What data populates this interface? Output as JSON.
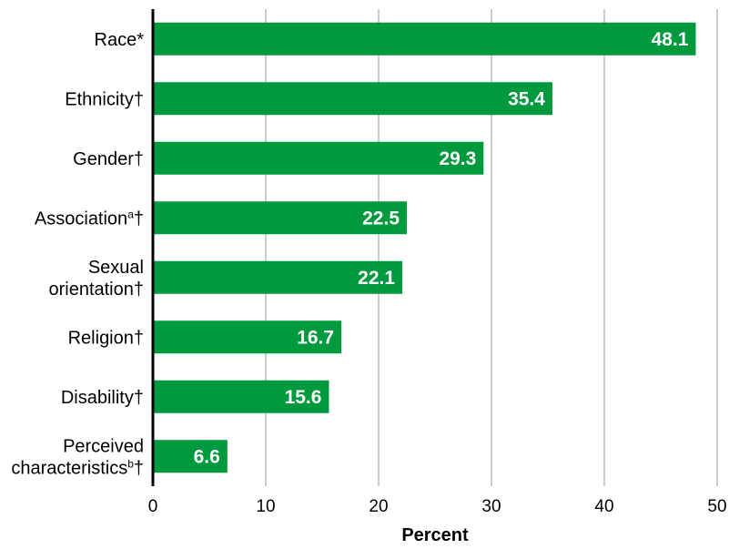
{
  "chart_data": {
    "type": "bar",
    "orientation": "horizontal",
    "categories": [
      [
        "Race*"
      ],
      [
        "Ethnicity†"
      ],
      [
        "Gender†"
      ],
      [
        "Association",
        "a",
        "†"
      ],
      [
        "Sexual",
        "orientation†"
      ],
      [
        "Religion†"
      ],
      [
        "Disability†"
      ],
      [
        "Perceived",
        "characteristics",
        "b",
        "†"
      ]
    ],
    "category_labels": [
      "Race*",
      "Ethnicity†",
      "Gender†",
      "Associationᵃ†",
      "Sexual orientation†",
      "Religion†",
      "Disability†",
      "Perceived characteristicsᵇ†"
    ],
    "values": [
      48.1,
      35.4,
      29.3,
      22.5,
      22.1,
      16.7,
      15.6,
      6.6
    ],
    "value_labels": [
      "48.1",
      "35.4",
      "29.3",
      "22.5",
      "22.1",
      "16.7",
      "15.6",
      "6.6"
    ],
    "xlabel": "Percent",
    "ylabel": "",
    "xlim": [
      0,
      50
    ],
    "xticks": [
      0,
      10,
      20,
      30,
      40,
      50
    ],
    "xtick_labels": [
      "0",
      "10",
      "20",
      "30",
      "40",
      "50"
    ],
    "grid": "vertical",
    "legend": "none",
    "bar_color": "#009a3e"
  }
}
